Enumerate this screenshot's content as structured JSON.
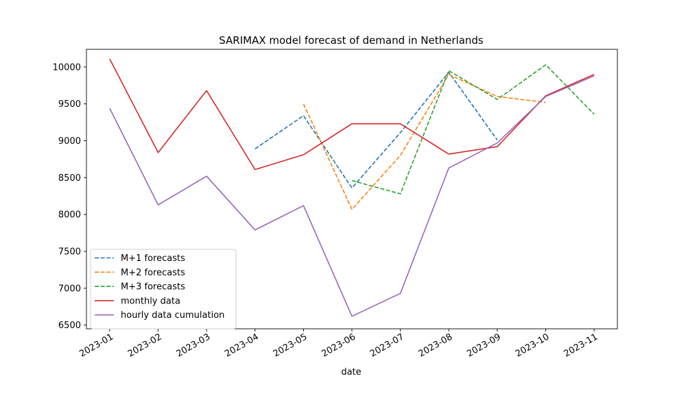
{
  "chart_data": {
    "type": "line",
    "title": "SARIMAX model forecast of demand in Netherlands",
    "xlabel": "date",
    "ylabel": "",
    "x": [
      "2023-01",
      "2023-02",
      "2023-03",
      "2023-04",
      "2023-05",
      "2023-06",
      "2023-07",
      "2023-08",
      "2023-09",
      "2023-10",
      "2023-11"
    ],
    "xlim": [
      -0.48,
      10.48
    ],
    "ylim": [
      6450,
      10240
    ],
    "yticks": [
      6500,
      7000,
      7500,
      8000,
      8500,
      9000,
      9500,
      10000
    ],
    "grid": false,
    "legend_position": "lower-left",
    "series": [
      {
        "name": "M+1 forecasts",
        "color": "#1f77b4",
        "style": "dashed",
        "points": [
          [
            3,
            8890
          ],
          [
            4,
            9340
          ],
          [
            5,
            8360
          ],
          [
            6,
            9110
          ],
          [
            7,
            9930
          ],
          [
            8,
            9010
          ]
        ]
      },
      {
        "name": "M+2 forecasts",
        "color": "#ff7f0e",
        "style": "dashed",
        "points": [
          [
            4,
            9500
          ],
          [
            5,
            8070
          ],
          [
            6,
            8800
          ],
          [
            7,
            9900
          ],
          [
            8,
            9600
          ],
          [
            9,
            9520
          ]
        ]
      },
      {
        "name": "M+3 forecasts",
        "color": "#2ca02c",
        "style": "dashed",
        "points": [
          [
            5,
            8460
          ],
          [
            6,
            8280
          ],
          [
            7,
            9950
          ],
          [
            8,
            9560
          ],
          [
            9,
            10030
          ],
          [
            10,
            9360
          ]
        ]
      },
      {
        "name": "monthly data",
        "color": "#d62728",
        "style": "solid",
        "points": [
          [
            0,
            10110
          ],
          [
            1,
            8840
          ],
          [
            2,
            9680
          ],
          [
            3,
            8610
          ],
          [
            4,
            8810
          ],
          [
            5,
            9230
          ],
          [
            6,
            9230
          ],
          [
            7,
            8820
          ],
          [
            8,
            8920
          ],
          [
            9,
            9610
          ],
          [
            10,
            9900
          ]
        ]
      },
      {
        "name": "hourly data cumulation",
        "color": "#9467bd",
        "style": "solid",
        "points": [
          [
            0,
            9440
          ],
          [
            1,
            8130
          ],
          [
            2,
            8520
          ],
          [
            3,
            7790
          ],
          [
            4,
            8120
          ],
          [
            5,
            6620
          ],
          [
            6,
            6930
          ],
          [
            7,
            8630
          ],
          [
            8,
            8970
          ],
          [
            9,
            9600
          ],
          [
            10,
            9880
          ]
        ]
      }
    ]
  }
}
